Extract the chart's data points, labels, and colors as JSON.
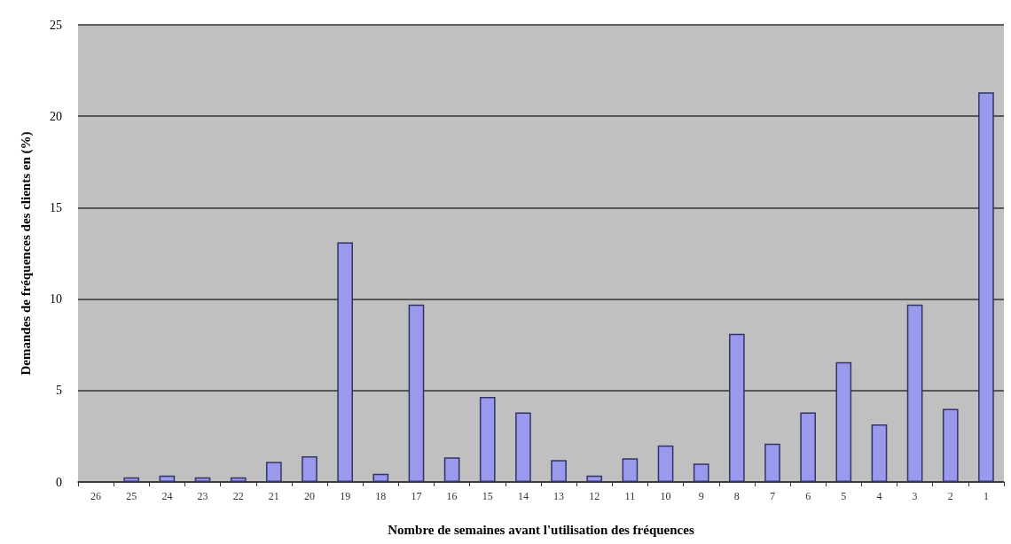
{
  "chart_data": {
    "type": "bar",
    "xlabel": "Nombre de semaines avant l'utilisation des fréquences",
    "ylabel": "Demandes de fréquences des clients en (%)",
    "categories": [
      "26",
      "25",
      "24",
      "23",
      "22",
      "21",
      "20",
      "19",
      "18",
      "17",
      "16",
      "15",
      "14",
      "13",
      "12",
      "11",
      "10",
      "9",
      "8",
      "7",
      "6",
      "5",
      "4",
      "3",
      "2",
      "1"
    ],
    "values": [
      0,
      0.25,
      0.35,
      0.25,
      0.25,
      1.1,
      1.4,
      13.1,
      0.45,
      9.7,
      1.35,
      4.65,
      3.8,
      1.2,
      0.35,
      1.3,
      2.0,
      1.0,
      8.1,
      2.1,
      3.8,
      6.55,
      3.15,
      9.7,
      4.0,
      21.3
    ],
    "color": "#9999ee",
    "ylim": [
      0,
      25
    ],
    "yticks": [
      0,
      5,
      10,
      15,
      20,
      25
    ],
    "grid": "y"
  }
}
